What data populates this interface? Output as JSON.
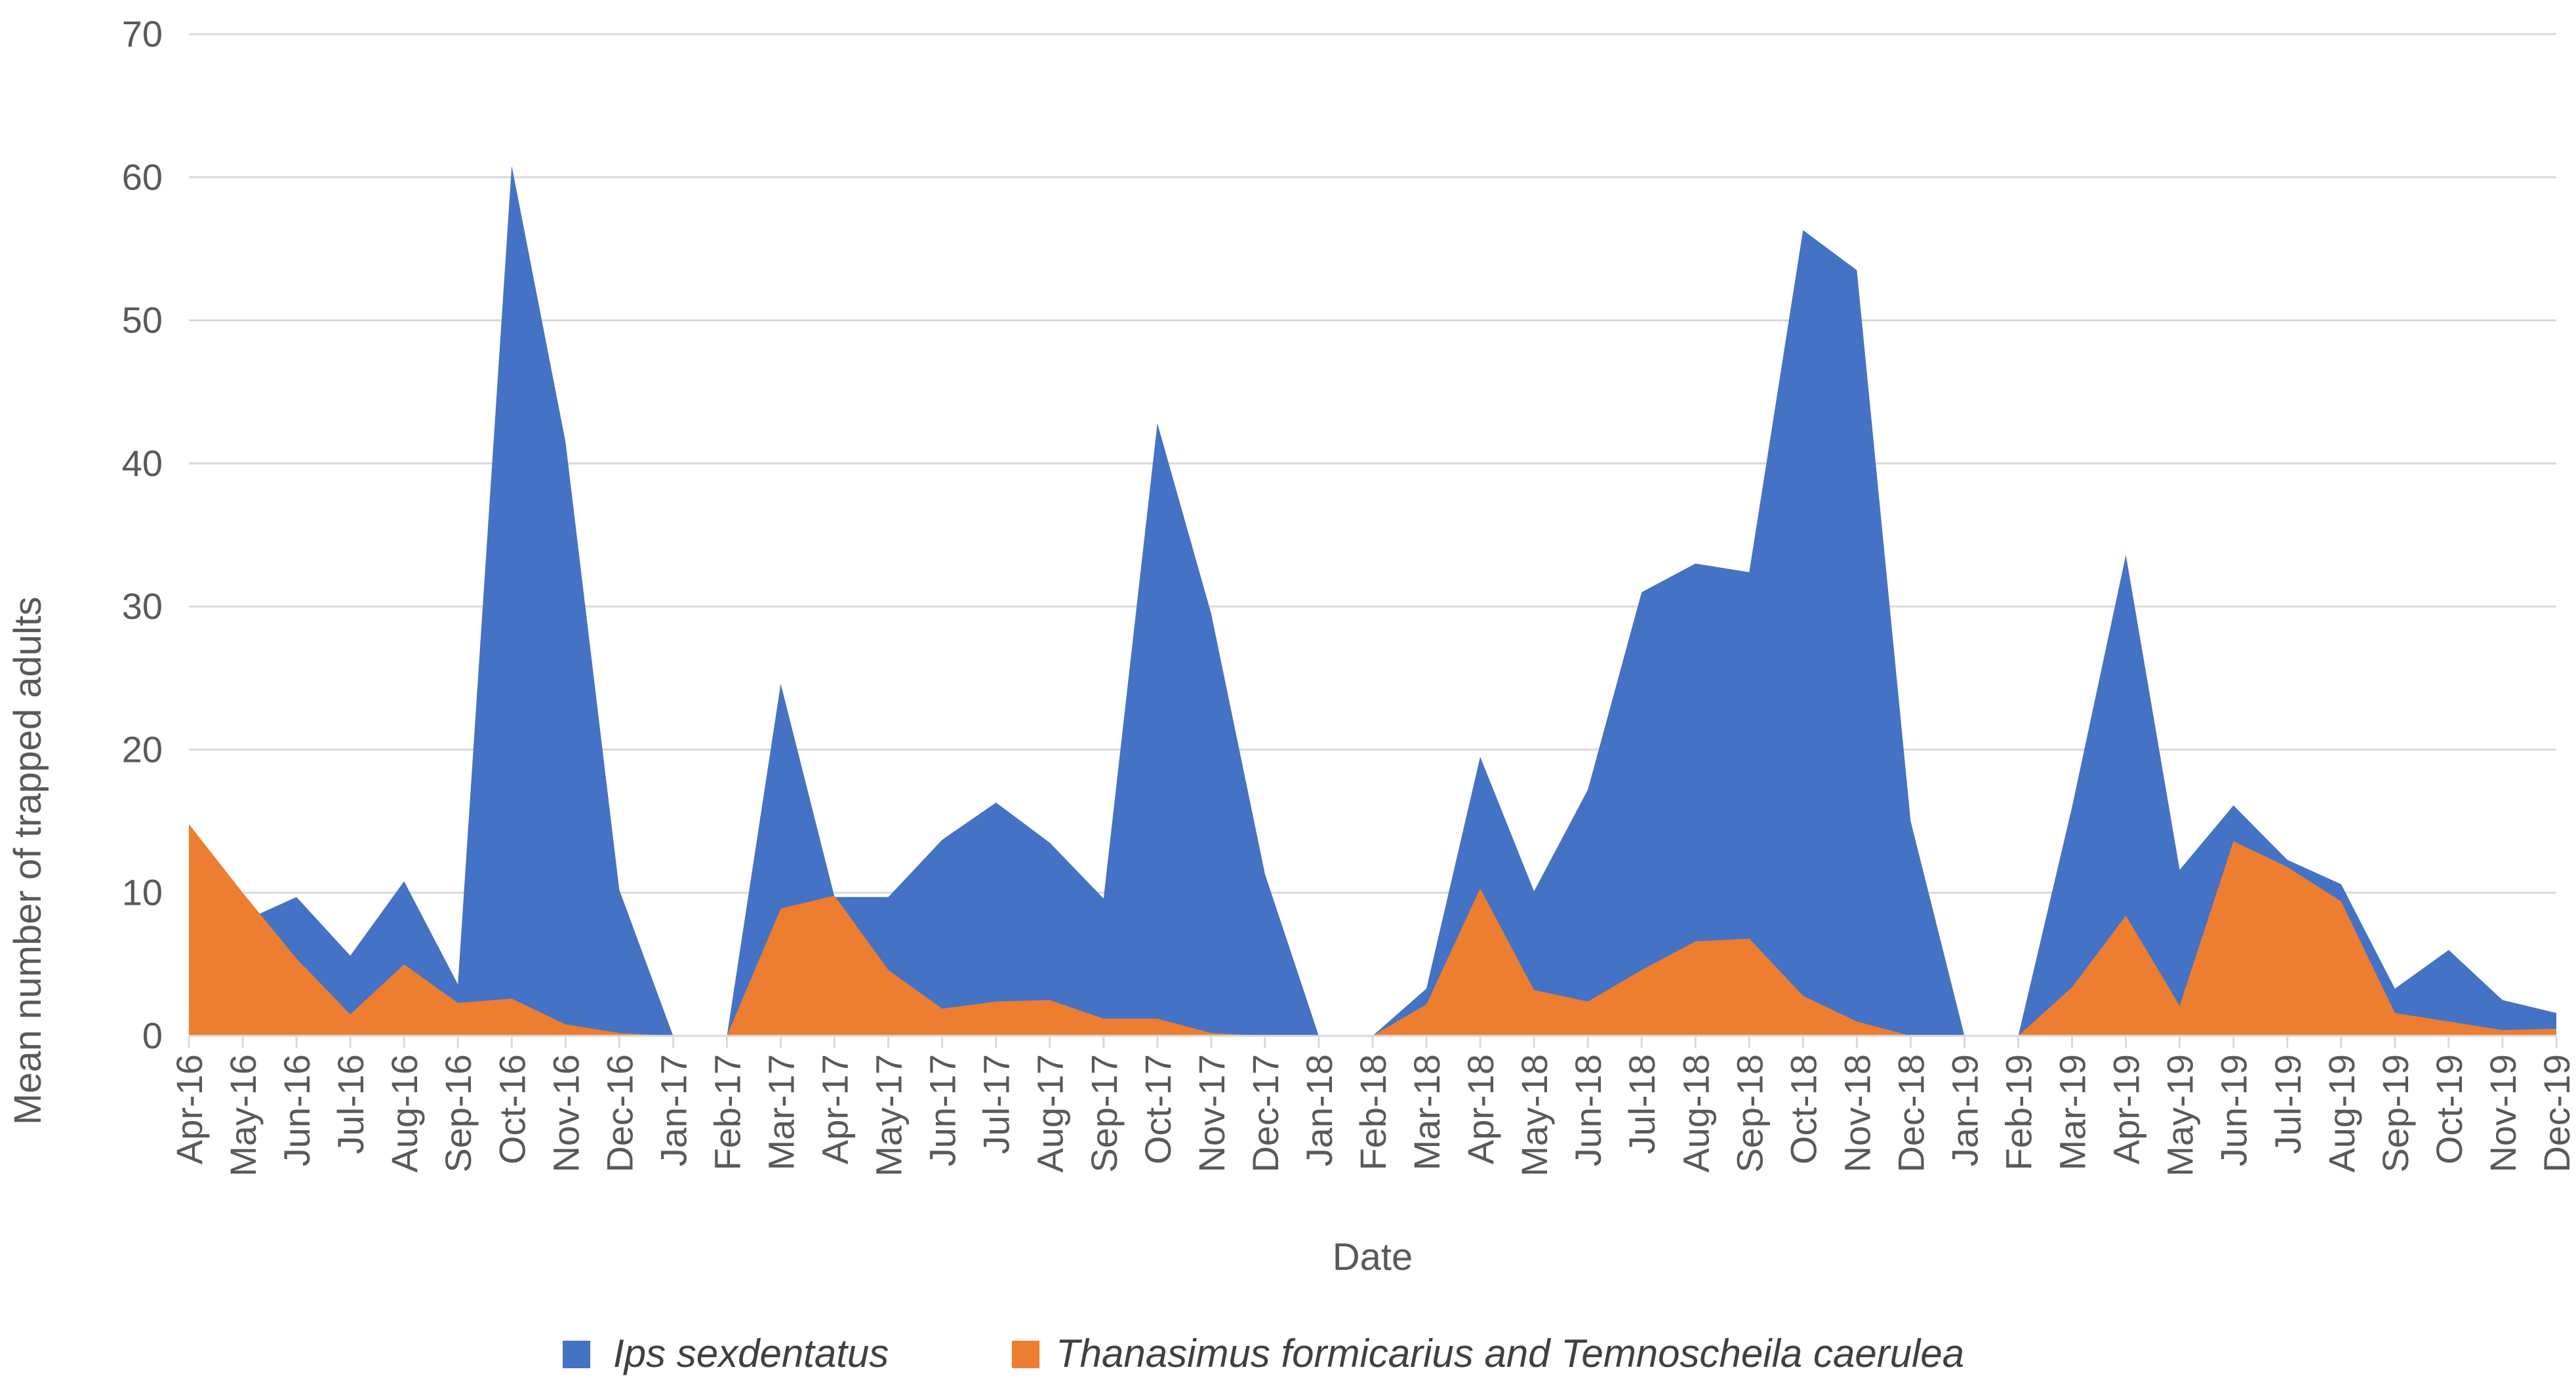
{
  "chart_data": {
    "type": "area",
    "title": "",
    "xlabel": "Date",
    "ylabel": "Mean number of trapped adults",
    "ylim": [
      0,
      70
    ],
    "yticks": [
      0,
      10,
      20,
      30,
      40,
      50,
      60,
      70
    ],
    "grid": true,
    "legend_position": "bottom",
    "categories": [
      "Apr-16",
      "May-16",
      "Jun-16",
      "Jul-16",
      "Aug-16",
      "Sep-16",
      "Oct-16",
      "Nov-16",
      "Dec-16",
      "Jan-17",
      "Feb-17",
      "Mar-17",
      "Apr-17",
      "May-17",
      "Jun-17",
      "Jul-17",
      "Aug-17",
      "Sep-17",
      "Oct-17",
      "Nov-17",
      "Dec-17",
      "Jan-18",
      "Feb-18",
      "Mar-18",
      "Apr-18",
      "May-18",
      "Jun-18",
      "Jul-18",
      "Aug-18",
      "Sep-18",
      "Oct-18",
      "Nov-18",
      "Dec-18",
      "Jan-19",
      "Feb-19",
      "Mar-19",
      "Apr-19",
      "May-19",
      "Jun-19",
      "Jul-19",
      "Aug-19",
      "Sep-19",
      "Oct-19",
      "Nov-19",
      "Dec-19"
    ],
    "series": [
      {
        "name": "Ips sexdentatus",
        "color": "#4472C4",
        "values": [
          null,
          8,
          9.7,
          5.6,
          10.8,
          3.6,
          60.8,
          41.5,
          10.2,
          0,
          0,
          24.6,
          9.7,
          9.7,
          13.7,
          16.3,
          13.5,
          9.6,
          42.8,
          29.5,
          11.3,
          0,
          0,
          3.3,
          19.5,
          10.1,
          17.2,
          31,
          33,
          32.4,
          56.3,
          53.5,
          15,
          0,
          0,
          16,
          33.6,
          11.6,
          16.1,
          12.3,
          10.6,
          3.3,
          6,
          2.5,
          1.6
        ]
      },
      {
        "name": "Thanasimus formicarius and Temnoscheila caerulea",
        "color": "#ED7D31",
        "values": [
          14.8,
          10,
          5.4,
          1.5,
          5,
          2.3,
          2.6,
          0.8,
          0.2,
          0,
          0,
          8.9,
          9.8,
          4.6,
          1.9,
          2.4,
          2.5,
          1.2,
          1.2,
          0.2,
          0,
          0,
          0,
          2.2,
          10.3,
          3.2,
          2.4,
          4.6,
          6.6,
          6.8,
          2.8,
          1,
          0,
          0,
          0,
          3.4,
          8.4,
          2.1,
          13.6,
          11.8,
          9.4,
          1.6,
          1,
          0.4,
          0.5
        ]
      }
    ]
  }
}
